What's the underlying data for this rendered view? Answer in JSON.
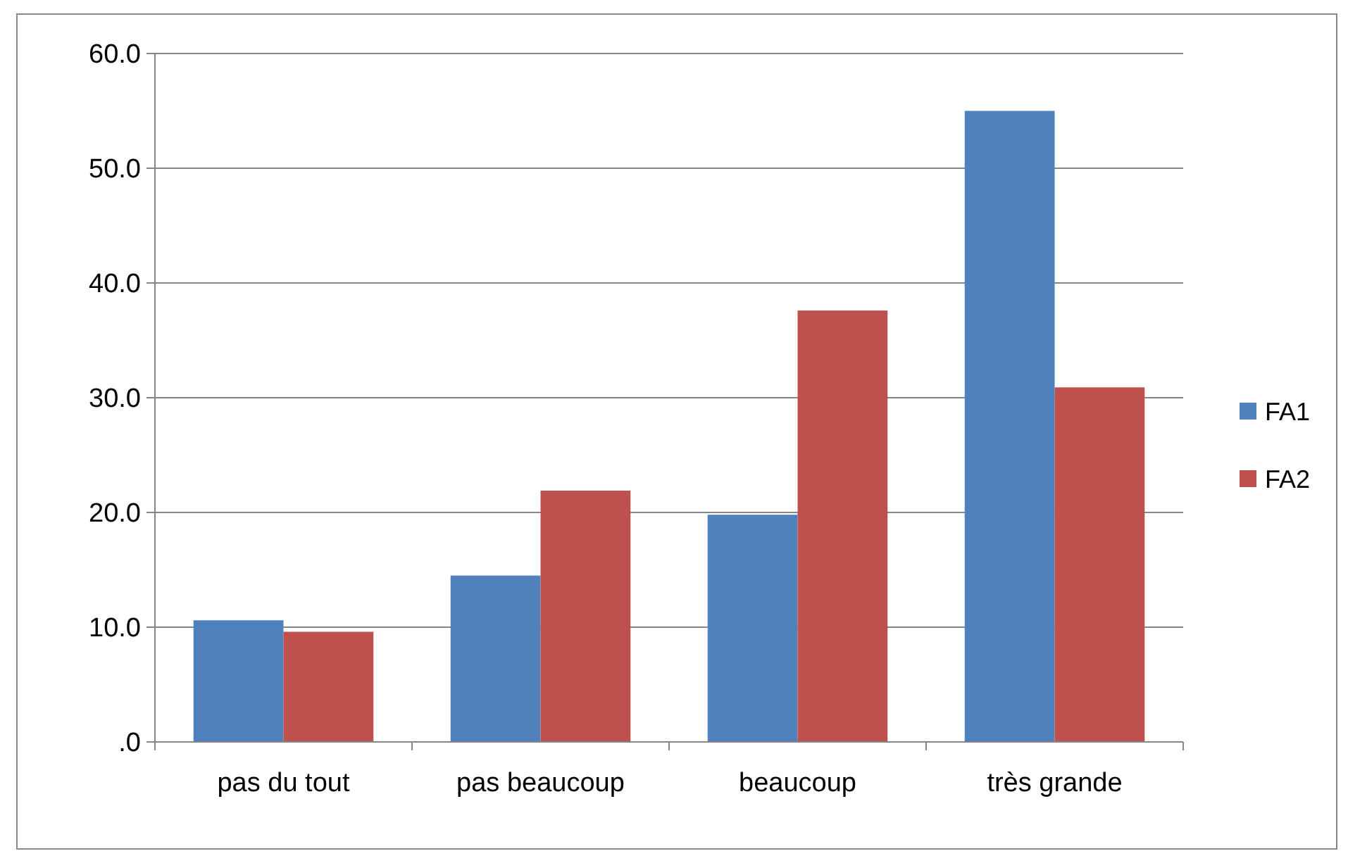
{
  "chart_data": {
    "type": "bar",
    "categories": [
      "pas du tout",
      "pas beaucoup",
      "beaucoup",
      "très grande"
    ],
    "series": [
      {
        "name": "FA1",
        "color": "#4f81bd",
        "values": [
          10.6,
          14.5,
          19.8,
          55.0
        ]
      },
      {
        "name": "FA2",
        "color": "#c0504d",
        "values": [
          9.6,
          21.9,
          37.6,
          30.9
        ]
      }
    ],
    "ylim": [
      0,
      60
    ],
    "yticks": [
      {
        "value": 0,
        "label": ".0"
      },
      {
        "value": 10,
        "label": "10.0"
      },
      {
        "value": 20,
        "label": "20.0"
      },
      {
        "value": 30,
        "label": "30.0"
      },
      {
        "value": 40,
        "label": "40.0"
      },
      {
        "value": 50,
        "label": "50.0"
      },
      {
        "value": 60,
        "label": "60.0"
      }
    ],
    "grid": "y",
    "legend": "right"
  }
}
